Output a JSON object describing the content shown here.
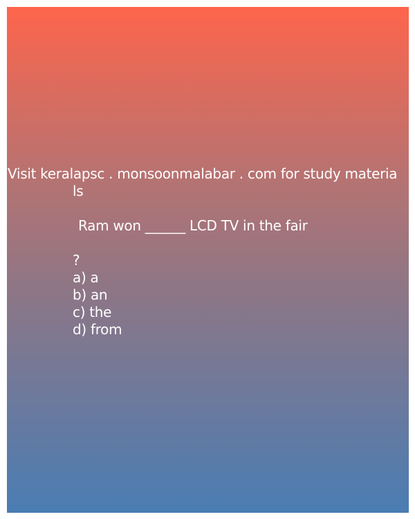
{
  "card": {
    "header_line1": "Visit keralapsc . monsoonmalabar . com for study materia",
    "header_line2": "ls",
    "question": "Ram won ______ LCD TV in the fair",
    "question_mark": "?",
    "options": [
      "a) a",
      "b) an",
      "c) the",
      "d) from"
    ]
  },
  "colors": {
    "gradient_top": "#fe654c",
    "gradient_bottom": "#4a7db3",
    "text": "#ffffff"
  }
}
